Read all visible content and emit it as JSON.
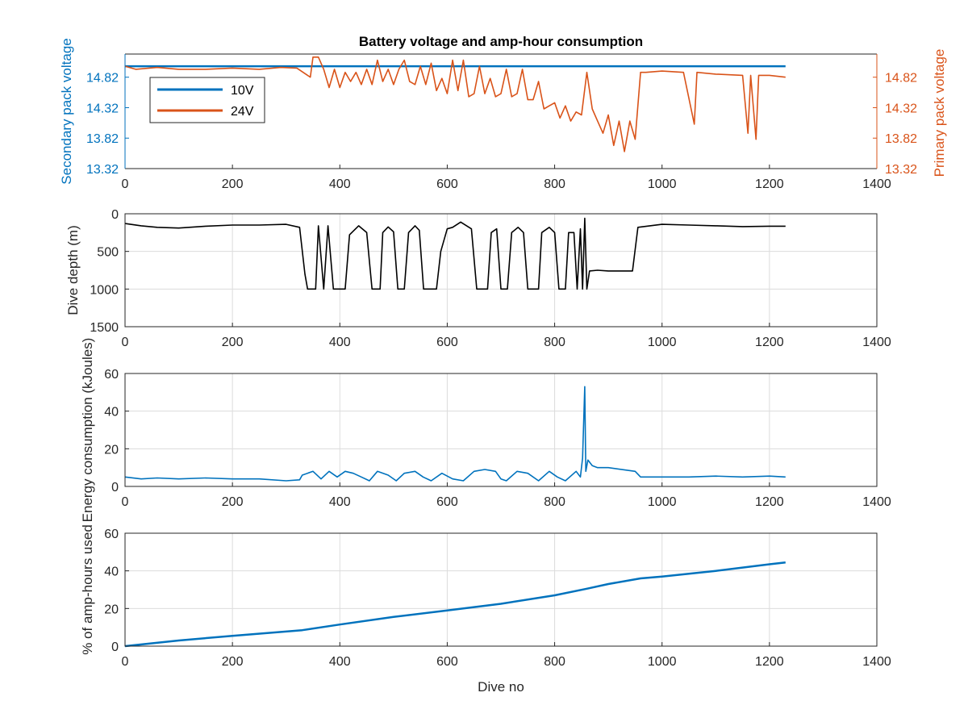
{
  "figure_title": "Battery voltage and amp-hour consumption",
  "colors": {
    "blue": "#0072BD",
    "orange": "#D95319",
    "black": "#000000",
    "grid": "#dcdcdc",
    "axis": "#262626"
  },
  "chart_data": [
    {
      "type": "line",
      "title": "Battery voltage and amp-hour consumption",
      "xlabel": "",
      "ylabel": "Secondary pack voltage",
      "ylabel_right": "Primary pack voltage",
      "xlim": [
        0,
        1400
      ],
      "x_ticks": [
        "0",
        "200",
        "400",
        "600",
        "800",
        "1000",
        "1200",
        "1400"
      ],
      "ylim": [
        13.32,
        15.2
      ],
      "y_ticks": [
        "13.32",
        "13.82",
        "14.32",
        "14.82"
      ],
      "y_ticks_right": [
        "13.32",
        "13.82",
        "14.32",
        "14.82"
      ],
      "grid": false,
      "legend_location": "top-left",
      "series": [
        {
          "name": "10V",
          "color": "#0072BD",
          "axis": "left",
          "points": [
            [
              0,
              15.0
            ],
            [
              1230,
              15.0
            ]
          ]
        },
        {
          "name": "24V",
          "color": "#D95319",
          "axis": "right",
          "points": [
            [
              0,
              15.0
            ],
            [
              20,
              14.95
            ],
            [
              60,
              14.98
            ],
            [
              100,
              14.95
            ],
            [
              150,
              14.95
            ],
            [
              200,
              14.97
            ],
            [
              250,
              14.95
            ],
            [
              290,
              14.98
            ],
            [
              320,
              14.97
            ],
            [
              345,
              14.82
            ],
            [
              350,
              15.15
            ],
            [
              360,
              15.15
            ],
            [
              370,
              14.95
            ],
            [
              380,
              14.65
            ],
            [
              390,
              14.95
            ],
            [
              400,
              14.65
            ],
            [
              410,
              14.9
            ],
            [
              420,
              14.75
            ],
            [
              430,
              14.9
            ],
            [
              440,
              14.7
            ],
            [
              450,
              14.95
            ],
            [
              460,
              14.7
            ],
            [
              470,
              15.1
            ],
            [
              480,
              14.75
            ],
            [
              490,
              14.95
            ],
            [
              500,
              14.7
            ],
            [
              510,
              14.95
            ],
            [
              520,
              15.1
            ],
            [
              530,
              14.75
            ],
            [
              540,
              14.7
            ],
            [
              550,
              15.0
            ],
            [
              560,
              14.7
            ],
            [
              570,
              15.05
            ],
            [
              580,
              14.6
            ],
            [
              590,
              14.8
            ],
            [
              600,
              14.55
            ],
            [
              610,
              15.1
            ],
            [
              620,
              14.6
            ],
            [
              630,
              15.1
            ],
            [
              640,
              14.5
            ],
            [
              650,
              14.55
            ],
            [
              660,
              15.0
            ],
            [
              670,
              14.55
            ],
            [
              680,
              14.8
            ],
            [
              690,
              14.5
            ],
            [
              700,
              14.55
            ],
            [
              710,
              14.95
            ],
            [
              720,
              14.5
            ],
            [
              730,
              14.55
            ],
            [
              740,
              14.95
            ],
            [
              750,
              14.45
            ],
            [
              760,
              14.45
            ],
            [
              770,
              14.75
            ],
            [
              780,
              14.3
            ],
            [
              790,
              14.35
            ],
            [
              800,
              14.4
            ],
            [
              810,
              14.15
            ],
            [
              820,
              14.35
            ],
            [
              830,
              14.1
            ],
            [
              840,
              14.25
            ],
            [
              850,
              14.2
            ],
            [
              860,
              14.9
            ],
            [
              870,
              14.3
            ],
            [
              880,
              14.1
            ],
            [
              890,
              13.9
            ],
            [
              900,
              14.2
            ],
            [
              910,
              13.7
            ],
            [
              920,
              14.1
            ],
            [
              930,
              13.6
            ],
            [
              940,
              14.1
            ],
            [
              950,
              13.8
            ],
            [
              960,
              14.9
            ],
            [
              970,
              14.9
            ],
            [
              1000,
              14.92
            ],
            [
              1040,
              14.9
            ],
            [
              1060,
              14.05
            ],
            [
              1065,
              14.9
            ],
            [
              1100,
              14.87
            ],
            [
              1150,
              14.85
            ],
            [
              1160,
              13.9
            ],
            [
              1165,
              14.85
            ],
            [
              1175,
              13.8
            ],
            [
              1180,
              14.85
            ],
            [
              1200,
              14.85
            ],
            [
              1230,
              14.82
            ]
          ]
        }
      ]
    },
    {
      "type": "line",
      "xlabel": "",
      "ylabel": "Dive depth (m)",
      "xlim": [
        0,
        1400
      ],
      "x_ticks": [
        "0",
        "200",
        "400",
        "600",
        "800",
        "1000",
        "1200",
        "1400"
      ],
      "ylim": [
        0,
        1500
      ],
      "y_reversed": true,
      "y_ticks": [
        "0",
        "500",
        "1000",
        "1500"
      ],
      "grid": true,
      "series": [
        {
          "color": "#000000",
          "points": [
            [
              0,
              130
            ],
            [
              30,
              160
            ],
            [
              60,
              180
            ],
            [
              100,
              190
            ],
            [
              150,
              165
            ],
            [
              200,
              150
            ],
            [
              250,
              150
            ],
            [
              300,
              140
            ],
            [
              325,
              180
            ],
            [
              335,
              800
            ],
            [
              340,
              1000
            ],
            [
              355,
              1000
            ],
            [
              360,
              160
            ],
            [
              370,
              1000
            ],
            [
              378,
              160
            ],
            [
              388,
              1000
            ],
            [
              410,
              1000
            ],
            [
              418,
              280
            ],
            [
              435,
              160
            ],
            [
              450,
              250
            ],
            [
              460,
              1000
            ],
            [
              475,
              1000
            ],
            [
              480,
              250
            ],
            [
              490,
              175
            ],
            [
              500,
              240
            ],
            [
              508,
              1000
            ],
            [
              520,
              1000
            ],
            [
              528,
              250
            ],
            [
              540,
              160
            ],
            [
              548,
              220
            ],
            [
              556,
              1000
            ],
            [
              580,
              1000
            ],
            [
              588,
              500
            ],
            [
              600,
              200
            ],
            [
              610,
              180
            ],
            [
              625,
              110
            ],
            [
              645,
              200
            ],
            [
              655,
              1000
            ],
            [
              675,
              1000
            ],
            [
              682,
              250
            ],
            [
              692,
              200
            ],
            [
              700,
              1000
            ],
            [
              712,
              1000
            ],
            [
              720,
              250
            ],
            [
              732,
              180
            ],
            [
              742,
              250
            ],
            [
              750,
              1000
            ],
            [
              770,
              1000
            ],
            [
              776,
              250
            ],
            [
              790,
              180
            ],
            [
              800,
              250
            ],
            [
              808,
              1000
            ],
            [
              820,
              1000
            ],
            [
              826,
              250
            ],
            [
              836,
              250
            ],
            [
              842,
              1000
            ],
            [
              848,
              200
            ],
            [
              852,
              1000
            ],
            [
              856,
              60
            ],
            [
              860,
              1000
            ],
            [
              865,
              760
            ],
            [
              880,
              750
            ],
            [
              900,
              760
            ],
            [
              920,
              760
            ],
            [
              945,
              760
            ],
            [
              955,
              180
            ],
            [
              1000,
              140
            ],
            [
              1050,
              150
            ],
            [
              1100,
              160
            ],
            [
              1150,
              170
            ],
            [
              1200,
              165
            ],
            [
              1230,
              165
            ]
          ]
        }
      ]
    },
    {
      "type": "line",
      "xlabel": "",
      "ylabel": "Energy consumption (kJoules)",
      "xlim": [
        0,
        1400
      ],
      "x_ticks": [
        "0",
        "200",
        "400",
        "600",
        "800",
        "1000",
        "1200",
        "1400"
      ],
      "ylim": [
        0,
        60
      ],
      "y_ticks": [
        "0",
        "20",
        "40",
        "60"
      ],
      "grid": true,
      "series": [
        {
          "color": "#0072BD",
          "points": [
            [
              0,
              5
            ],
            [
              30,
              4
            ],
            [
              60,
              4.5
            ],
            [
              100,
              4
            ],
            [
              150,
              4.5
            ],
            [
              200,
              4
            ],
            [
              250,
              4
            ],
            [
              300,
              3
            ],
            [
              325,
              3.5
            ],
            [
              330,
              6
            ],
            [
              350,
              8
            ],
            [
              365,
              4
            ],
            [
              380,
              8
            ],
            [
              395,
              5
            ],
            [
              410,
              8
            ],
            [
              425,
              7
            ],
            [
              440,
              5
            ],
            [
              455,
              3
            ],
            [
              470,
              8
            ],
            [
              490,
              6
            ],
            [
              505,
              3
            ],
            [
              520,
              7
            ],
            [
              540,
              8
            ],
            [
              555,
              5
            ],
            [
              570,
              3
            ],
            [
              590,
              7
            ],
            [
              610,
              4
            ],
            [
              630,
              3
            ],
            [
              650,
              8
            ],
            [
              670,
              9
            ],
            [
              690,
              8
            ],
            [
              700,
              4
            ],
            [
              710,
              3
            ],
            [
              730,
              8
            ],
            [
              750,
              7
            ],
            [
              770,
              3
            ],
            [
              790,
              8
            ],
            [
              805,
              5
            ],
            [
              820,
              3
            ],
            [
              840,
              8
            ],
            [
              848,
              5
            ],
            [
              852,
              15
            ],
            [
              856,
              53
            ],
            [
              858,
              8
            ],
            [
              862,
              14
            ],
            [
              870,
              11
            ],
            [
              880,
              10
            ],
            [
              900,
              10
            ],
            [
              950,
              8
            ],
            [
              960,
              5
            ],
            [
              1000,
              5
            ],
            [
              1050,
              5
            ],
            [
              1100,
              5.5
            ],
            [
              1150,
              5
            ],
            [
              1200,
              5.5
            ],
            [
              1230,
              5
            ]
          ]
        }
      ]
    },
    {
      "type": "line",
      "xlabel": "Dive no",
      "ylabel": "% of amp-hours used",
      "xlim": [
        0,
        1400
      ],
      "x_ticks": [
        "0",
        "200",
        "400",
        "600",
        "800",
        "1000",
        "1200",
        "1400"
      ],
      "ylim": [
        0,
        60
      ],
      "y_ticks": [
        "0",
        "20",
        "40",
        "60"
      ],
      "grid": true,
      "series": [
        {
          "color": "#0072BD",
          "points": [
            [
              0,
              0
            ],
            [
              100,
              3
            ],
            [
              200,
              5.5
            ],
            [
              330,
              8.5
            ],
            [
              400,
              11.5
            ],
            [
              500,
              15.5
            ],
            [
              600,
              19
            ],
            [
              700,
              22.5
            ],
            [
              800,
              27
            ],
            [
              860,
              30.5
            ],
            [
              900,
              33
            ],
            [
              960,
              36
            ],
            [
              1000,
              37
            ],
            [
              1100,
              40
            ],
            [
              1200,
              43.5
            ],
            [
              1230,
              44.5
            ]
          ]
        }
      ]
    }
  ]
}
